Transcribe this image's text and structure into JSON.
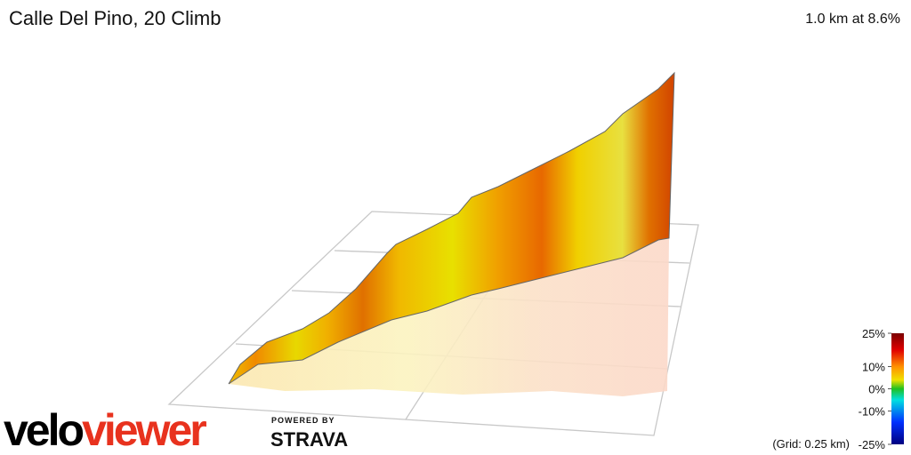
{
  "header": {
    "title": "Calle Del Pino, 20 Climb",
    "summary": "1.0 km at 8.6%"
  },
  "legend": {
    "ticks": [
      {
        "value": 25,
        "label": "25%"
      },
      {
        "value": 10,
        "label": "10%"
      },
      {
        "value": 0,
        "label": "0%"
      },
      {
        "value": -10,
        "label": "-10%"
      },
      {
        "value": -25,
        "label": "-25%"
      }
    ],
    "grid_note": "(Grid: 0.25 km)"
  },
  "branding": {
    "logo_dark": "velo",
    "logo_red": "viewer",
    "powered_by": "POWERED BY",
    "strava": "STRAVA"
  }
}
